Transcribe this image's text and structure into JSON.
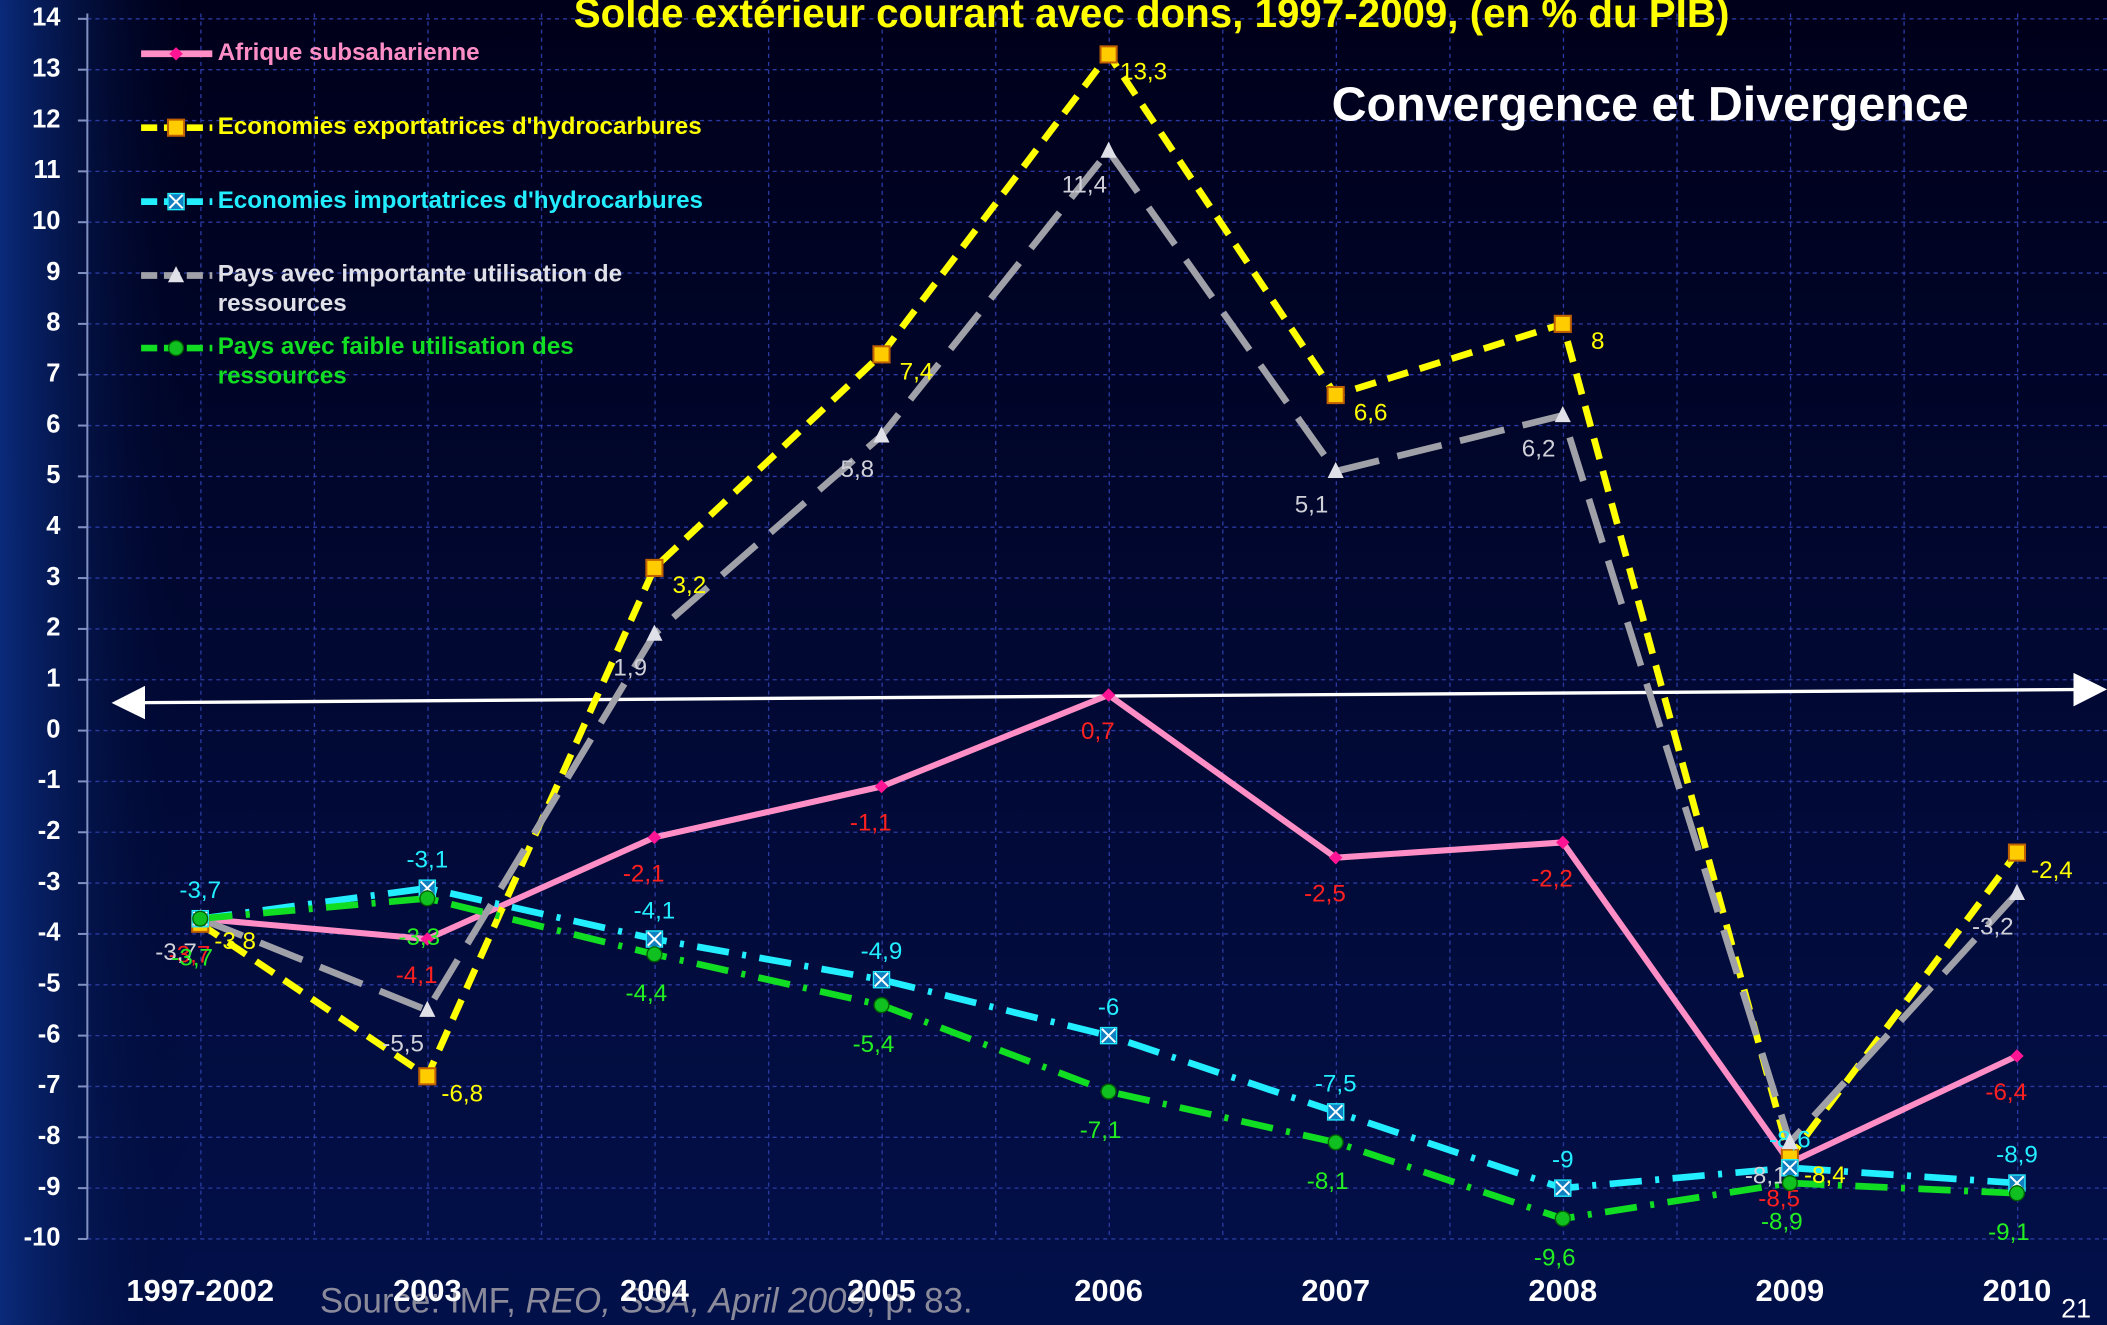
{
  "chart_data": {
    "type": "line",
    "title": "Solde extérieur courant avec dons, 1997-2009, (en % du PIB)",
    "annotation": "Convergence et Divergence",
    "source": [
      "Source:  IMF, ",
      "REO, SSA, April 2009",
      ", p. 83."
    ],
    "page_number": "21",
    "categories": [
      "1997-2002",
      "2003",
      "2004",
      "2005",
      "2006",
      "2007",
      "2008",
      "2009",
      "2010"
    ],
    "ylim": [
      -10,
      14
    ],
    "yticks": [
      -10,
      -9,
      -8,
      -7,
      -6,
      -5,
      -4,
      -3,
      -2,
      -1,
      0,
      1,
      2,
      3,
      4,
      5,
      6,
      7,
      8,
      9,
      10,
      11,
      12,
      13,
      14
    ],
    "grid": true,
    "legend": "top-left",
    "series": [
      {
        "name": "Afrique subsaharienne",
        "color": "#ff8ec6",
        "label_color": "#ff2020",
        "style": "solid",
        "marker": "diamond",
        "values": [
          -3.7,
          -4.1,
          -2.1,
          -1.1,
          0.7,
          -2.5,
          -2.2,
          -8.5,
          -6.4
        ],
        "value_labels": [
          "-3,7",
          "-4,1",
          "-2,1",
          "-1,1",
          "0,7",
          "-2,5",
          "-2,2",
          "-8,5",
          "-6,4"
        ]
      },
      {
        "name": "Economies exportatrices d'hydrocarbures",
        "color": "#ffff00",
        "label_color": "#ffff00",
        "style": "dashed",
        "marker": "square",
        "values": [
          -3.8,
          -6.8,
          3.2,
          7.4,
          13.3,
          6.6,
          8,
          -8.4,
          -2.4
        ],
        "value_labels": [
          "-3,8",
          "-6,8",
          "3,2",
          "7,4",
          "13,3",
          "6,6",
          "8",
          "-8,4",
          "-2,4"
        ]
      },
      {
        "name": "Economies importatrices d'hydrocarbures",
        "color": "#22eeff",
        "label_color": "#22eeff",
        "style": "dashdot",
        "marker": "x",
        "values": [
          -3.7,
          -3.1,
          -4.1,
          -4.9,
          -6,
          -7.5,
          -9,
          -8.6,
          -8.9
        ],
        "value_labels": [
          "-3,7",
          "-3,1",
          "-4,1",
          "-4,9",
          "-6",
          "-7,5",
          "-9",
          "-8,6",
          "-8,9"
        ]
      },
      {
        "name": "Pays avec importante utilisation de ressources",
        "color": "#a0a0a8",
        "label_color": "#d0d0d8",
        "style": "longdash",
        "marker": "triangle",
        "values": [
          -3.7,
          -5.5,
          1.9,
          5.8,
          11.4,
          5.1,
          6.2,
          -8.1,
          -3.2
        ],
        "value_labels": [
          "-3,7",
          "-5,5",
          "1,9",
          "5,8",
          "11,4",
          "5,1",
          "6,2",
          "-8,1",
          "-3,2"
        ]
      },
      {
        "name": "Pays avec faible utilisation des ressources",
        "color": "#11dd22",
        "label_color": "#22ee22",
        "style": "dashdot",
        "marker": "circle",
        "values": [
          -3.7,
          -3.3,
          -4.4,
          -5.4,
          -7.1,
          -8.1,
          -9.6,
          -8.9,
          -9.1
        ],
        "value_labels": [
          "-3,7",
          "-3,3",
          "-4,4",
          "-5,4",
          "-7,1",
          "-8,1",
          "-9,6",
          "-8,9",
          "-9,1"
        ]
      }
    ]
  }
}
